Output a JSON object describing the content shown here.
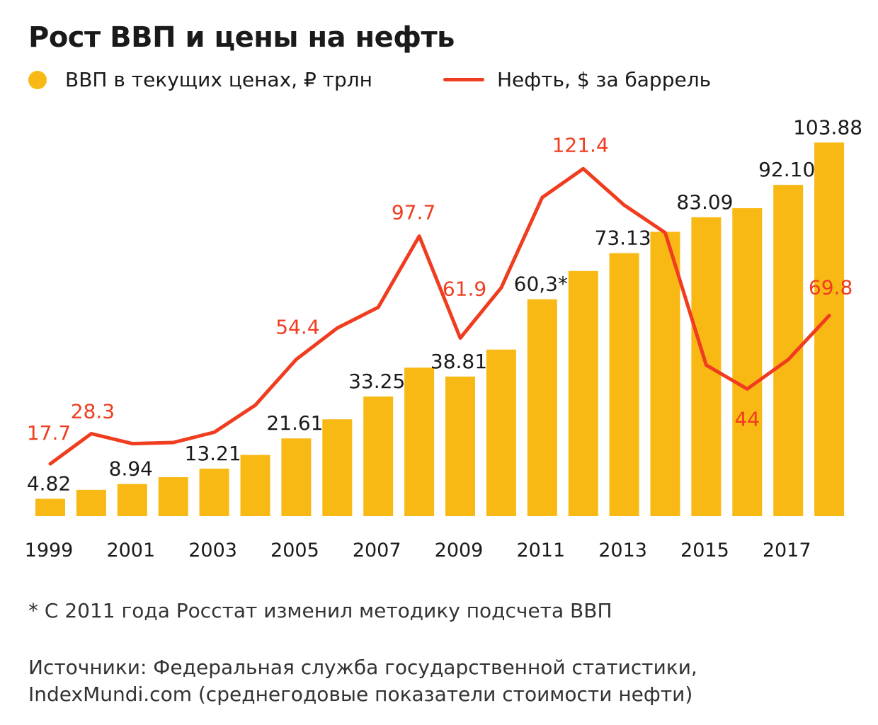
{
  "title": "Рост ВВП и цены на нефть",
  "legend": {
    "gdp": "ВВП в текущих ценах, ₽ трлн",
    "oil": "Нефть, $ за баррель"
  },
  "colors": {
    "bars": "#f9b914",
    "line": "#f03c1f",
    "gdp_label": "#1a1a1a",
    "oil_label": "#f03c1f"
  },
  "chart_data": {
    "type": "bar",
    "x": [
      1999,
      2000,
      2001,
      2002,
      2003,
      2004,
      2005,
      2006,
      2007,
      2008,
      2009,
      2010,
      2011,
      2012,
      2013,
      2014,
      2015,
      2016,
      2017,
      2018
    ],
    "x_tick_labels": [
      "1999",
      "2001",
      "2003",
      "2005",
      "2007",
      "2009",
      "2011",
      "2013",
      "2015",
      "2017"
    ],
    "series": [
      {
        "name": "ВВП в текущих ценах, ₽ трлн",
        "type": "bar",
        "values": [
          4.82,
          7.31,
          8.94,
          10.83,
          13.21,
          17.03,
          21.61,
          26.92,
          33.25,
          41.28,
          38.81,
          46.31,
          60.3,
          68.16,
          73.13,
          79.06,
          83.09,
          85.62,
          92.1,
          103.88
        ],
        "labels": [
          "4.82",
          "",
          "8.94",
          "",
          "13.21",
          "",
          "21.61",
          "",
          "33.25",
          "",
          "38.81",
          "",
          "60,3*",
          "",
          "73.13",
          "",
          "83.09",
          "",
          "92.10",
          "103.88"
        ]
      },
      {
        "name": "Нефть, $ за баррель",
        "type": "line",
        "values": [
          17.7,
          28.3,
          24.8,
          25.2,
          28.8,
          38.3,
          54.4,
          65.4,
          72.7,
          97.7,
          61.9,
          79.6,
          111.3,
          121.4,
          108.6,
          98.9,
          52.4,
          44,
          54.3,
          69.8
        ],
        "labels": [
          "17.7",
          "28.3",
          "",
          "",
          "",
          "",
          "54.4",
          "",
          "",
          "97.7",
          "61.9",
          "",
          "",
          "121.4",
          "",
          "",
          "",
          "44",
          "",
          "69.8"
        ]
      }
    ]
  },
  "footnote": "* С 2011 года Росстат изменил методику подсчета ВВП",
  "sources": {
    "line1": "Источники: Федеральная служба государственной статистики,",
    "line2": "IndexMundi.com (среднегодовые показатели стоимости нефти)"
  }
}
